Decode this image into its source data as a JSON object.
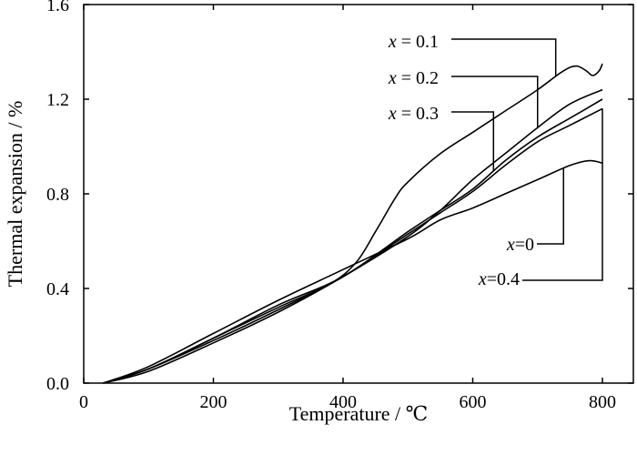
{
  "chart_data": {
    "type": "line",
    "xlabel": "Temperature / ℃",
    "ylabel": "Thermal expansion / %",
    "xlim": [
      0,
      850
    ],
    "ylim": [
      0,
      1.6
    ],
    "xticks": [
      0,
      200,
      400,
      600,
      800
    ],
    "yticks": [
      0.0,
      0.4,
      0.8,
      1.2,
      1.6
    ],
    "x_tick_labels": [
      "0",
      "200",
      "400",
      "600",
      "800"
    ],
    "y_tick_labels": [
      "0.0",
      "0.4",
      "0.8",
      "1.2",
      "1.6"
    ],
    "grid": false,
    "legend": "direct leader-line labels",
    "series": [
      {
        "name": "x = 0.1",
        "label_var": "x",
        "label_rest": " = 0.1",
        "points": [
          [
            30,
            0
          ],
          [
            100,
            0.06
          ],
          [
            200,
            0.19
          ],
          [
            300,
            0.32
          ],
          [
            380,
            0.42
          ],
          [
            420,
            0.51
          ],
          [
            450,
            0.64
          ],
          [
            480,
            0.78
          ],
          [
            500,
            0.85
          ],
          [
            550,
            0.97
          ],
          [
            600,
            1.06
          ],
          [
            650,
            1.15
          ],
          [
            700,
            1.24
          ],
          [
            740,
            1.32
          ],
          [
            760,
            1.34
          ],
          [
            775,
            1.32
          ],
          [
            785,
            1.3
          ],
          [
            795,
            1.32
          ],
          [
            800,
            1.35
          ]
        ],
        "anchor_x": 728
      },
      {
        "name": "x = 0.2",
        "label_var": "x",
        "label_rest": " = 0.2",
        "points": [
          [
            30,
            0
          ],
          [
            100,
            0.05
          ],
          [
            200,
            0.17
          ],
          [
            300,
            0.3
          ],
          [
            400,
            0.45
          ],
          [
            500,
            0.62
          ],
          [
            550,
            0.73
          ],
          [
            600,
            0.86
          ],
          [
            650,
            0.97
          ],
          [
            700,
            1.08
          ],
          [
            750,
            1.18
          ],
          [
            800,
            1.24
          ]
        ],
        "anchor_x": 700
      },
      {
        "name": "x = 0.3",
        "label_var": "x",
        "label_rest": " = 0.3",
        "points": [
          [
            30,
            0
          ],
          [
            100,
            0.06
          ],
          [
            200,
            0.19
          ],
          [
            300,
            0.33
          ],
          [
            400,
            0.45
          ],
          [
            500,
            0.64
          ],
          [
            550,
            0.73
          ],
          [
            600,
            0.82
          ],
          [
            650,
            0.94
          ],
          [
            700,
            1.04
          ],
          [
            750,
            1.12
          ],
          [
            800,
            1.2
          ]
        ],
        "anchor_x": 632
      },
      {
        "name": "x=0",
        "label_var": "x",
        "label_rest": "=0",
        "points": [
          [
            30,
            0
          ],
          [
            100,
            0.07
          ],
          [
            200,
            0.21
          ],
          [
            300,
            0.35
          ],
          [
            400,
            0.48
          ],
          [
            500,
            0.61
          ],
          [
            550,
            0.69
          ],
          [
            600,
            0.74
          ],
          [
            650,
            0.8
          ],
          [
            700,
            0.86
          ],
          [
            750,
            0.92
          ],
          [
            780,
            0.94
          ],
          [
            800,
            0.93
          ]
        ],
        "anchor_x": 740
      },
      {
        "name": "x=0.4",
        "label_var": "x",
        "label_rest": "=0.4",
        "points": [
          [
            30,
            0
          ],
          [
            100,
            0.06
          ],
          [
            200,
            0.18
          ],
          [
            300,
            0.31
          ],
          [
            400,
            0.45
          ],
          [
            500,
            0.63
          ],
          [
            550,
            0.72
          ],
          [
            600,
            0.81
          ],
          [
            650,
            0.92
          ],
          [
            700,
            1.02
          ],
          [
            750,
            1.09
          ],
          [
            800,
            1.16
          ]
        ],
        "anchor_x": 800
      }
    ]
  }
}
